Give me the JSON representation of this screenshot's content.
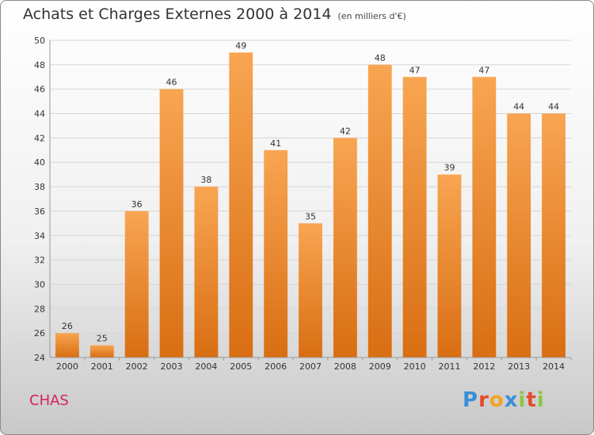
{
  "chart_data": {
    "type": "bar",
    "title": "Achats et Charges Externes 2000 à 2014",
    "subtitle": "(en milliers d'€)",
    "categories": [
      "2000",
      "2001",
      "2002",
      "2003",
      "2004",
      "2005",
      "2006",
      "2007",
      "2008",
      "2009",
      "2010",
      "2011",
      "2012",
      "2013",
      "2014"
    ],
    "values": [
      26,
      25,
      36,
      46,
      38,
      49,
      41,
      35,
      42,
      48,
      47,
      39,
      47,
      44,
      44
    ],
    "ylim": [
      24,
      50
    ],
    "yticks": [
      24,
      26,
      28,
      30,
      32,
      34,
      36,
      38,
      40,
      42,
      44,
      46,
      48,
      50
    ],
    "grid": true,
    "bar_color": "#f08a2c"
  },
  "place_name": "CHAS",
  "brand": "Proxiti"
}
